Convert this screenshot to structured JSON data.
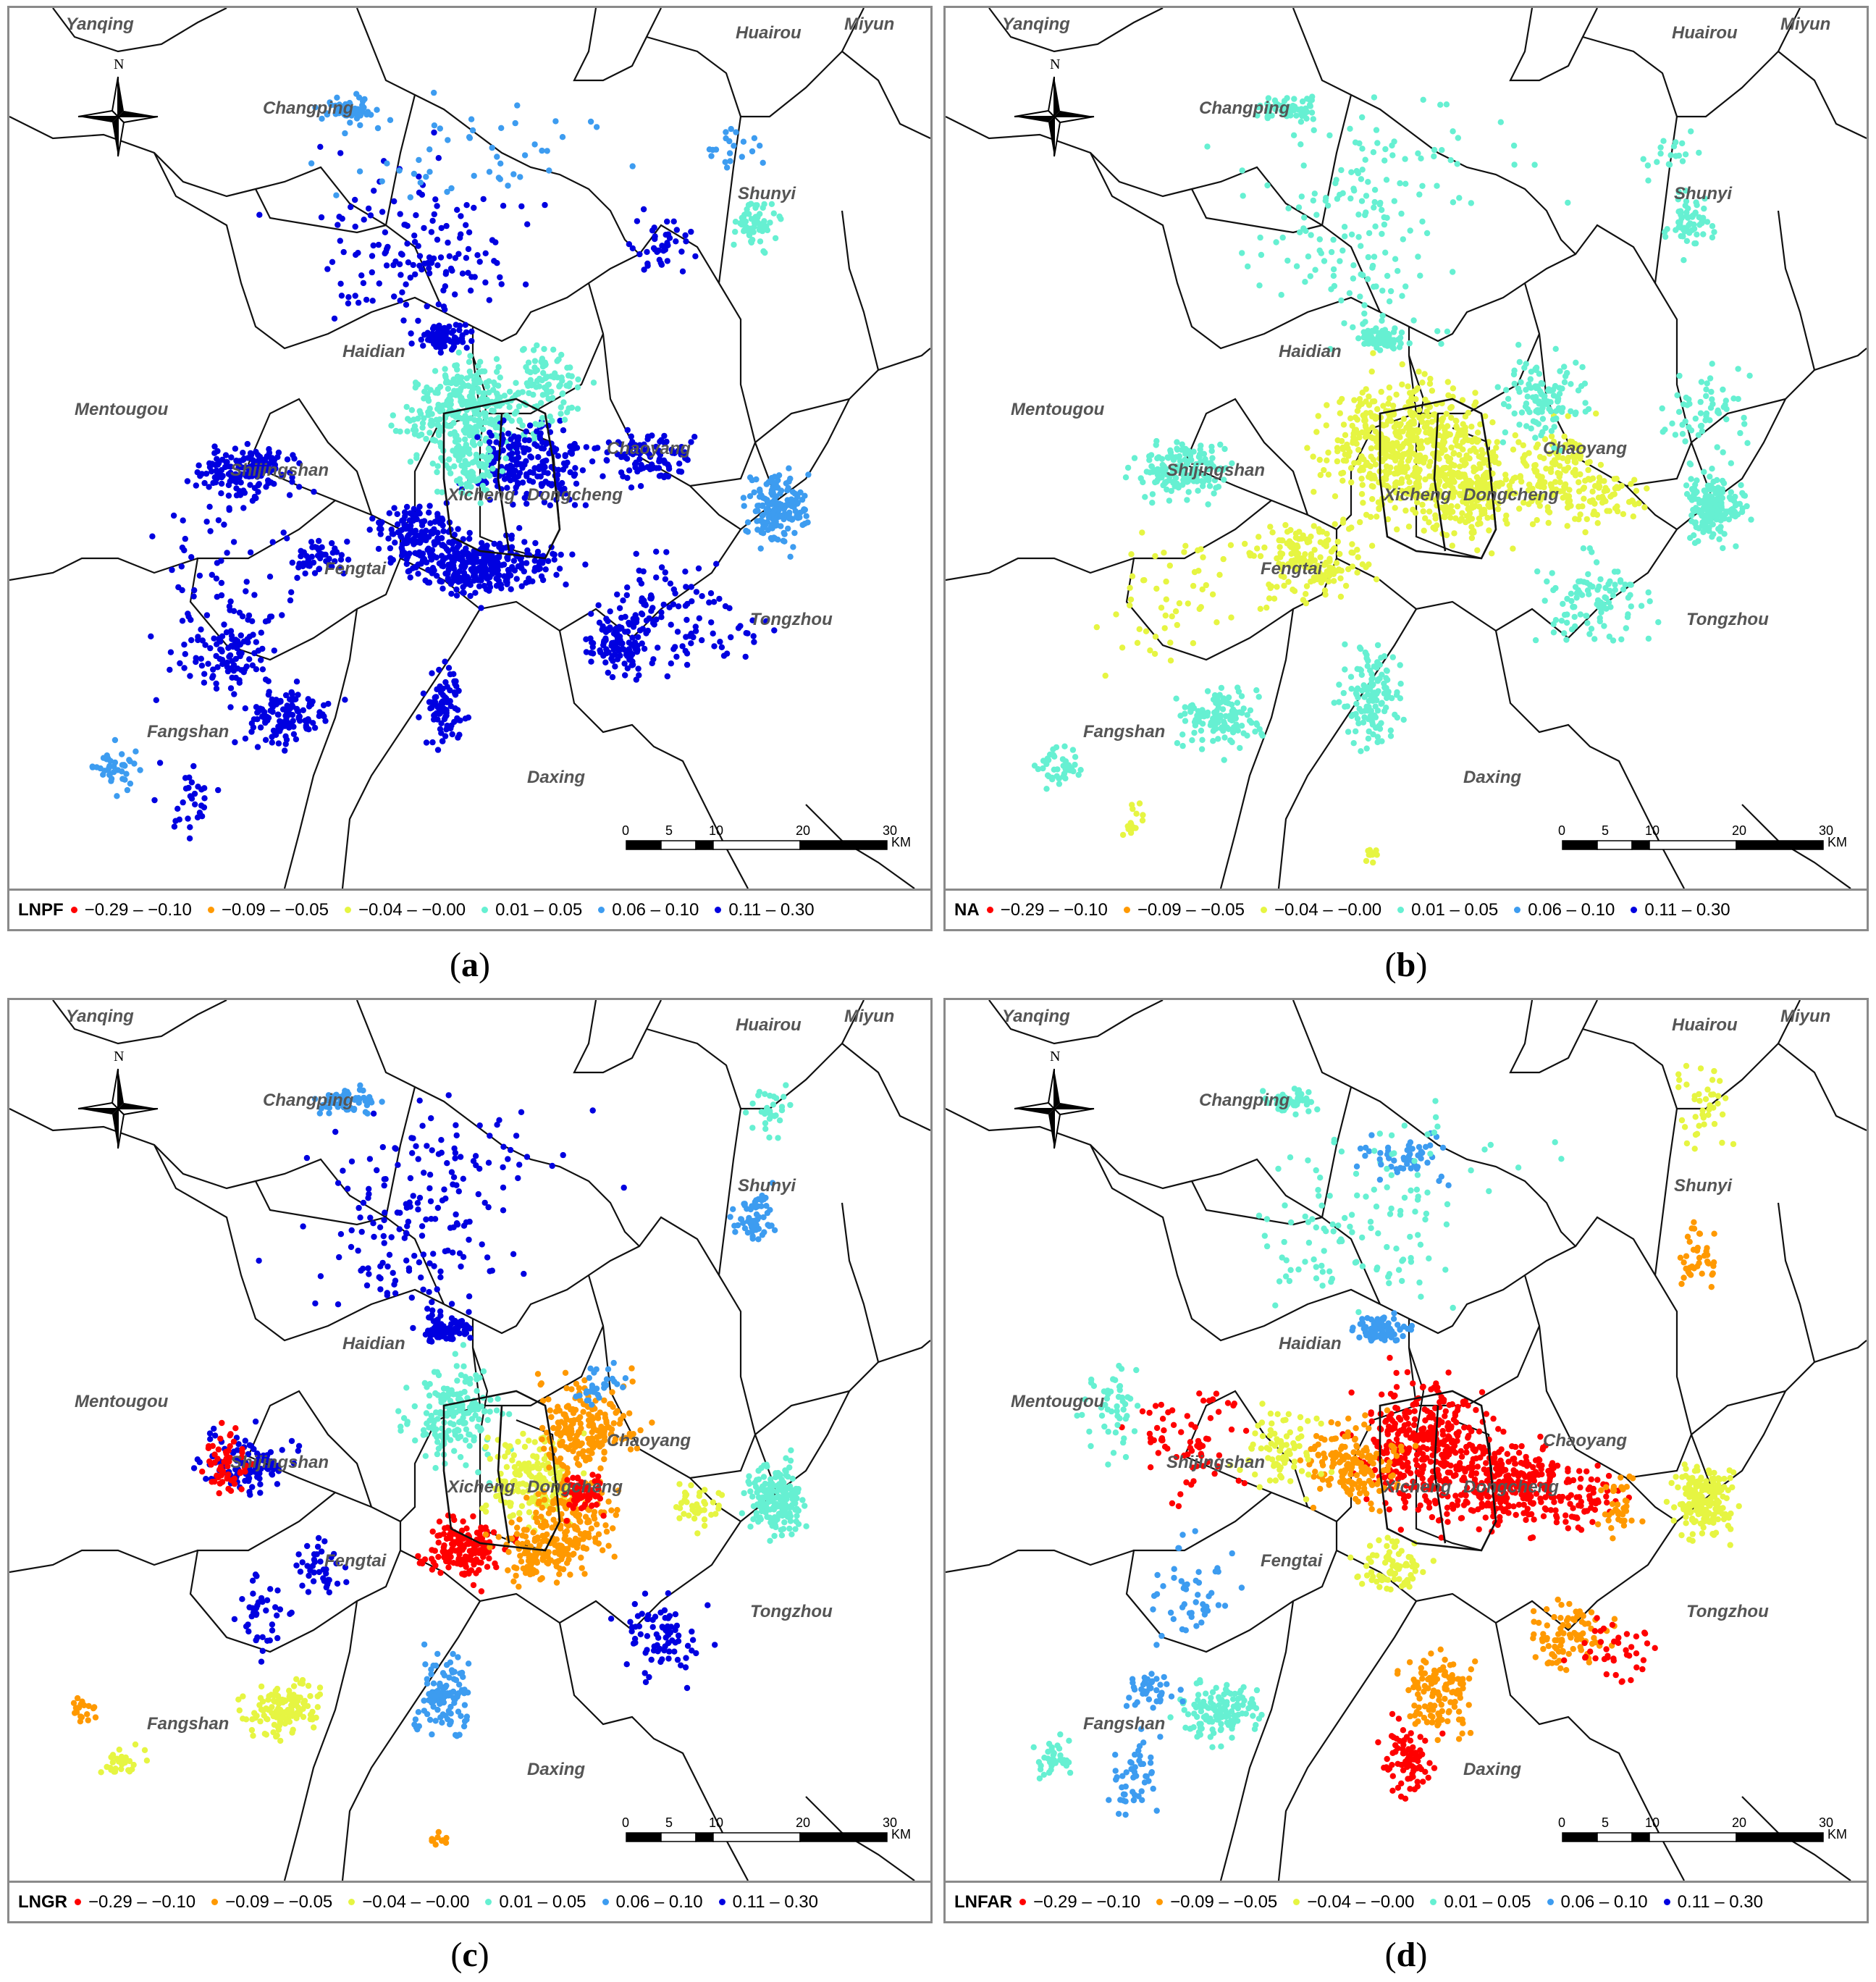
{
  "colors": {
    "c1": "#ff0000",
    "c2": "#ff9900",
    "c3": "#e6f542",
    "c4": "#66f0d2",
    "c5": "#3d9cf0",
    "c6": "#0000e0"
  },
  "legend_ranges": [
    "−0.29 – −0.10",
    "−0.09 – −0.05",
    "−0.04 – −0.00",
    "0.01 – 0.05",
    "0.06 – 0.10",
    "0.11 – 0.30"
  ],
  "districts": [
    "Yanqing",
    "Huairou",
    "Miyun",
    "Changping",
    "Shunyi",
    "Haidian",
    "Mentougou",
    "Chaoyang",
    "Shijingshan",
    "Xicheng",
    "Dongcheng",
    "Fengtai",
    "Tongzhou",
    "Fangshan",
    "Daxing"
  ],
  "north_label": "N",
  "scale": {
    "ticks": [
      "0",
      "5",
      "10",
      "20",
      "30"
    ],
    "unit": "KM"
  },
  "panels": [
    {
      "caption_letter": "a",
      "variable": "LNPF"
    },
    {
      "caption_letter": "b",
      "variable": "NA"
    },
    {
      "caption_letter": "c",
      "variable": "LNGR"
    },
    {
      "caption_letter": "d",
      "variable": "LNFAR"
    }
  ]
}
